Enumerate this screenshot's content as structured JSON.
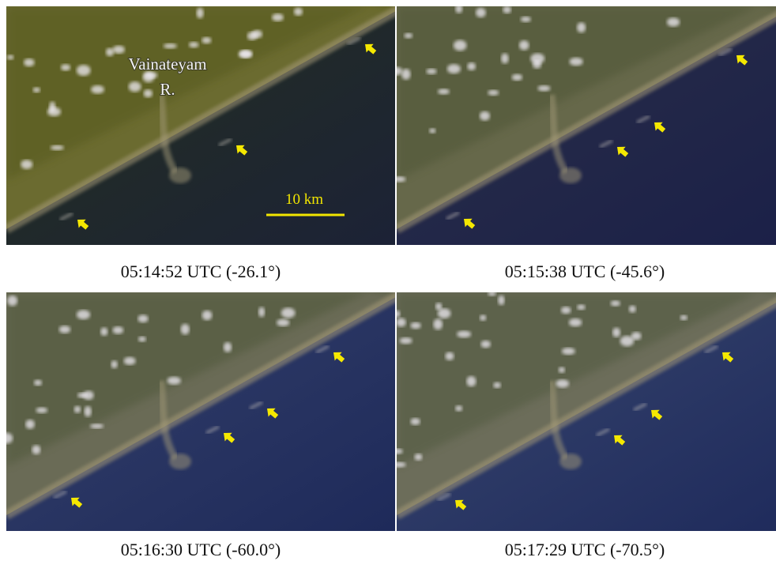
{
  "panels": [
    {
      "caption": "05:14:52 UTC (-26.1°)"
    },
    {
      "caption": "05:15:38 UTC (-45.6°)"
    },
    {
      "caption": "05:16:30 UTC (-60.0°)"
    },
    {
      "caption": "05:17:29 UTC (-70.5°)"
    }
  ],
  "annotations": {
    "river_label": [
      "Vainateyam",
      "R."
    ],
    "scale_bar": "10 km"
  }
}
